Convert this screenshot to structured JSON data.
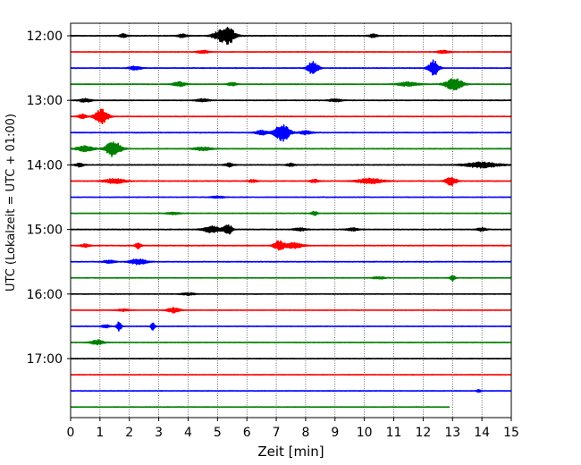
{
  "chart_data": {
    "type": "line",
    "title": "",
    "xlabel": "Zeit  [min]",
    "ylabel": "UTC (Lokalzeit = UTC + 01:00)",
    "xlim": [
      0,
      15
    ],
    "x_ticks": [
      "0",
      "1",
      "2",
      "3",
      "4",
      "5",
      "6",
      "7",
      "8",
      "9",
      "10",
      "11",
      "12",
      "13",
      "14",
      "15"
    ],
    "y_ticks": [
      {
        "label": "12:00",
        "trace": 0
      },
      {
        "label": "13:00",
        "trace": 4
      },
      {
        "label": "14:00",
        "trace": 8
      },
      {
        "label": "15:00",
        "trace": 12
      },
      {
        "label": "16:00",
        "trace": 16
      },
      {
        "label": "17:00",
        "trace": 20
      }
    ],
    "grid_x": true,
    "colors": [
      "#000000",
      "#ff0000",
      "#0000ff",
      "#008000"
    ],
    "traces": [
      {
        "row": 0,
        "color": "#000000",
        "end_min": 15,
        "noise": 0.3,
        "events": [
          [
            5.35,
            2.4,
            0.35
          ],
          [
            5.0,
            1.0,
            0.3
          ],
          [
            1.8,
            0.5,
            0.2
          ],
          [
            3.8,
            0.5,
            0.25
          ],
          [
            10.3,
            0.5,
            0.2
          ]
        ]
      },
      {
        "row": 1,
        "color": "#ff0000",
        "end_min": 15,
        "noise": 0.25,
        "events": [
          [
            4.5,
            0.4,
            0.3
          ],
          [
            12.7,
            0.4,
            0.3
          ]
        ]
      },
      {
        "row": 2,
        "color": "#0000ff",
        "end_min": 15,
        "noise": 0.3,
        "events": [
          [
            8.25,
            2.0,
            0.25
          ],
          [
            12.35,
            2.2,
            0.25
          ],
          [
            2.2,
            0.5,
            0.3
          ]
        ]
      },
      {
        "row": 3,
        "color": "#008000",
        "end_min": 15,
        "noise": 0.3,
        "events": [
          [
            13.05,
            1.8,
            0.4
          ],
          [
            3.7,
            0.6,
            0.3
          ],
          [
            11.5,
            0.6,
            0.5
          ],
          [
            5.5,
            0.5,
            0.2
          ]
        ]
      },
      {
        "row": 4,
        "color": "#000000",
        "end_min": 15,
        "noise": 0.3,
        "events": [
          [
            0.5,
            0.5,
            0.3
          ],
          [
            4.5,
            0.4,
            0.3
          ],
          [
            9.0,
            0.4,
            0.3
          ]
        ]
      },
      {
        "row": 5,
        "color": "#ff0000",
        "end_min": 15,
        "noise": 0.25,
        "events": [
          [
            1.05,
            2.2,
            0.3
          ],
          [
            0.4,
            0.6,
            0.2
          ]
        ]
      },
      {
        "row": 6,
        "color": "#0000ff",
        "end_min": 15,
        "noise": 0.3,
        "events": [
          [
            7.2,
            2.6,
            0.35
          ],
          [
            6.5,
            0.6,
            0.3
          ],
          [
            8.0,
            0.5,
            0.3
          ]
        ]
      },
      {
        "row": 7,
        "color": "#008000",
        "end_min": 15,
        "noise": 0.3,
        "events": [
          [
            1.45,
            2.4,
            0.35
          ],
          [
            0.5,
            0.8,
            0.4
          ],
          [
            4.5,
            0.5,
            0.4
          ]
        ]
      },
      {
        "row": 8,
        "color": "#000000",
        "end_min": 15,
        "noise": 0.3,
        "events": [
          [
            0.3,
            0.5,
            0.2
          ],
          [
            5.4,
            0.5,
            0.2
          ],
          [
            14.0,
            0.8,
            0.8
          ],
          [
            7.5,
            0.4,
            0.2
          ]
        ]
      },
      {
        "row": 9,
        "color": "#ff0000",
        "end_min": 15,
        "noise": 0.3,
        "events": [
          [
            10.2,
            0.8,
            0.6
          ],
          [
            12.95,
            1.2,
            0.25
          ],
          [
            1.5,
            0.7,
            0.5
          ],
          [
            8.3,
            0.5,
            0.2
          ],
          [
            6.2,
            0.4,
            0.2
          ]
        ]
      },
      {
        "row": 10,
        "color": "#0000ff",
        "end_min": 15,
        "noise": 0.25,
        "events": [
          [
            5.0,
            0.3,
            0.3
          ]
        ]
      },
      {
        "row": 11,
        "color": "#008000",
        "end_min": 15,
        "noise": 0.25,
        "events": [
          [
            8.3,
            0.6,
            0.15
          ],
          [
            3.5,
            0.3,
            0.3
          ]
        ]
      },
      {
        "row": 12,
        "color": "#000000",
        "end_min": 15,
        "noise": 0.3,
        "events": [
          [
            4.8,
            0.9,
            0.4
          ],
          [
            5.35,
            1.6,
            0.2
          ],
          [
            7.8,
            0.4,
            0.3
          ],
          [
            9.6,
            0.4,
            0.3
          ],
          [
            14.0,
            0.5,
            0.2
          ]
        ]
      },
      {
        "row": 13,
        "color": "#ff0000",
        "end_min": 15,
        "noise": 0.3,
        "events": [
          [
            7.1,
            1.4,
            0.25
          ],
          [
            7.6,
            0.8,
            0.4
          ],
          [
            2.3,
            0.8,
            0.15
          ],
          [
            0.5,
            0.5,
            0.2
          ]
        ]
      },
      {
        "row": 14,
        "color": "#0000ff",
        "end_min": 15,
        "noise": 0.3,
        "events": [
          [
            2.3,
            0.8,
            0.4
          ],
          [
            1.3,
            0.4,
            0.3
          ]
        ]
      },
      {
        "row": 15,
        "color": "#008000",
        "end_min": 15,
        "noise": 0.25,
        "events": [
          [
            13.0,
            0.8,
            0.12
          ],
          [
            10.5,
            0.3,
            0.3
          ]
        ]
      },
      {
        "row": 16,
        "color": "#000000",
        "end_min": 15,
        "noise": 0.25,
        "events": [
          [
            4.0,
            0.3,
            0.3
          ]
        ]
      },
      {
        "row": 17,
        "color": "#ff0000",
        "end_min": 15,
        "noise": 0.25,
        "events": [
          [
            3.5,
            0.7,
            0.3
          ],
          [
            1.8,
            0.3,
            0.3
          ]
        ]
      },
      {
        "row": 18,
        "color": "#0000ff",
        "end_min": 15,
        "noise": 0.25,
        "events": [
          [
            1.65,
            1.4,
            0.12
          ],
          [
            2.8,
            1.0,
            0.1
          ],
          [
            1.2,
            0.4,
            0.2
          ]
        ]
      },
      {
        "row": 19,
        "color": "#008000",
        "end_min": 15,
        "noise": 0.25,
        "events": [
          [
            0.9,
            0.7,
            0.3
          ]
        ]
      },
      {
        "row": 20,
        "color": "#000000",
        "end_min": 15,
        "noise": 0.25,
        "events": []
      },
      {
        "row": 21,
        "color": "#ff0000",
        "end_min": 15,
        "noise": 0.22,
        "events": []
      },
      {
        "row": 22,
        "color": "#0000ff",
        "end_min": 15,
        "noise": 0.22,
        "events": [
          [
            13.9,
            0.4,
            0.1
          ]
        ]
      },
      {
        "row": 23,
        "color": "#008000",
        "end_min": 12.9,
        "noise": 0.2,
        "events": []
      }
    ]
  }
}
